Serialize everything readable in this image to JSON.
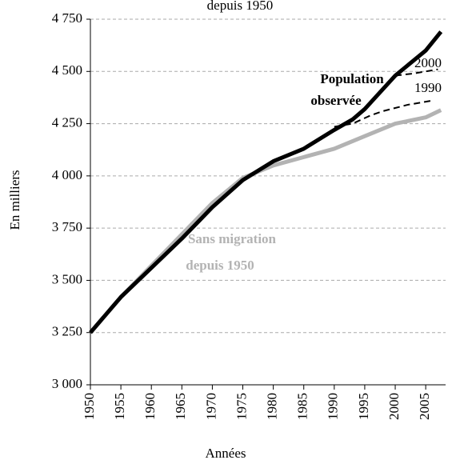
{
  "chart_data": {
    "type": "line",
    "title": "depuis 1950",
    "y_label": "En milliers",
    "x_label": "Années",
    "xlim": [
      1950,
      2008
    ],
    "xticks": [
      1950,
      1955,
      1960,
      1965,
      1970,
      1975,
      1980,
      1985,
      1990,
      1995,
      2000,
      2005
    ],
    "ylim": [
      3000,
      4750
    ],
    "yticks": [
      {
        "value": 3000,
        "label": "3 000"
      },
      {
        "value": 3250,
        "label": "3 250"
      },
      {
        "value": 3500,
        "label": "3 500"
      },
      {
        "value": 3750,
        "label": "3 750"
      },
      {
        "value": 4000,
        "label": "4 000"
      },
      {
        "value": 4250,
        "label": "4 250"
      },
      {
        "value": 4500,
        "label": "4 500"
      },
      {
        "value": 4750,
        "label": "4 750"
      }
    ],
    "grid": true,
    "series": [
      {
        "name": "Sans migration depuis 1950",
        "color": "#b3b3b3",
        "dash": false,
        "x": [
          1950,
          1955,
          1960,
          1965,
          1970,
          1975,
          1980,
          1985,
          1990,
          1995,
          2000,
          2005,
          2007.5
        ],
        "values": [
          3250,
          3420,
          3570,
          3720,
          3870,
          3990,
          4050,
          4090,
          4130,
          4190,
          4250,
          4280,
          4315
        ]
      },
      {
        "name": "Population observée",
        "color": "#000000",
        "dash": false,
        "x": [
          1950,
          1955,
          1960,
          1965,
          1970,
          1975,
          1980,
          1985,
          1990,
          1993,
          1995,
          2000,
          2005,
          2007.5
        ],
        "values": [
          3250,
          3420,
          3560,
          3700,
          3850,
          3980,
          4070,
          4130,
          4220,
          4270,
          4320,
          4480,
          4600,
          4690
        ]
      },
      {
        "name": "1990",
        "color": "#000000",
        "dash": true,
        "x": [
          1990,
          1993,
          1996,
          1998,
          2002,
          2006
        ],
        "values": [
          4235,
          4250,
          4290,
          4310,
          4340,
          4360
        ]
      },
      {
        "name": "2000",
        "color": "#000000",
        "dash": true,
        "x": [
          2000,
          2003,
          2007
        ],
        "values": [
          4480,
          4490,
          4510
        ]
      }
    ],
    "annotations": [
      {
        "lines": [
          "Population",
          "observée"
        ],
        "color": "#000000"
      },
      {
        "lines": [
          "Sans migration",
          "depuis 1950"
        ],
        "color": "#b3b3b3"
      }
    ]
  }
}
